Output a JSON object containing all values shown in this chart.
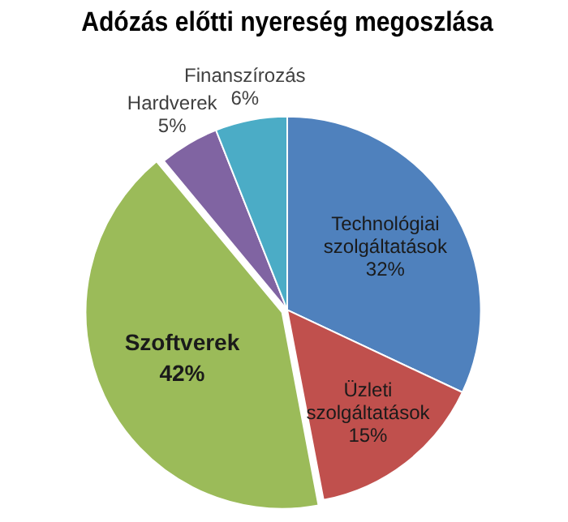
{
  "chart_data": {
    "type": "pie",
    "title": "Adózás előtti nyereség megoszlása",
    "categories": [
      "Technológiai szolgáltatások",
      "Üzleti szolgáltatások",
      "Szoftverek",
      "Hardverek",
      "Finanszírozás"
    ],
    "values": [
      32,
      15,
      42,
      5,
      6
    ],
    "value_labels": [
      "32%",
      "15%",
      "42%",
      "5%",
      "6%"
    ],
    "colors": [
      "#4f81bd",
      "#c0504d",
      "#9bbb59",
      "#8064a2",
      "#4bacc6"
    ],
    "legend": false
  }
}
